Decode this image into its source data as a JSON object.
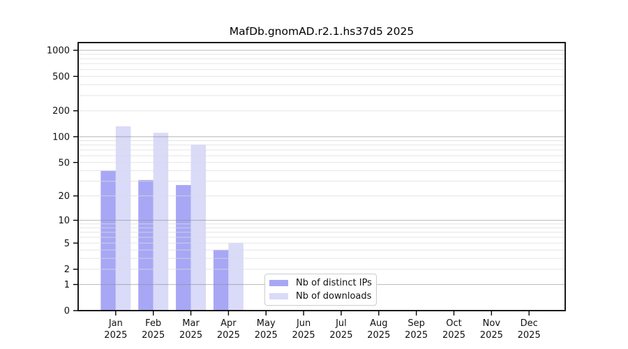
{
  "title": "MafDb.gnomAD.r2.1.hs37d5 2025",
  "chart_data": {
    "type": "bar",
    "title": "MafDb.gnomAD.r2.1.hs37d5 2025",
    "categories": [
      "Jan",
      "Feb",
      "Mar",
      "Apr",
      "May",
      "Jun",
      "Jul",
      "Aug",
      "Sep",
      "Oct",
      "Nov",
      "Dec"
    ],
    "year_label": "2025",
    "series": [
      {
        "name": "Nb of distinct IPs",
        "color": "#a7a7f5",
        "values": [
          40,
          31,
          27,
          4,
          0,
          0,
          0,
          0,
          0,
          0,
          0,
          0
        ]
      },
      {
        "name": "Nb of downloads",
        "color": "#dadaf9",
        "values": [
          132,
          111,
          81,
          5,
          0,
          0,
          0,
          0,
          0,
          0,
          0,
          0
        ]
      }
    ],
    "yscale": "log1p",
    "yticks": [
      0,
      1,
      2,
      5,
      10,
      20,
      50,
      100,
      200,
      500,
      1000
    ],
    "ylim": [
      0,
      1200
    ],
    "grid": "major and minor horizontal, drawn over bars",
    "legend_position": "bottom-center",
    "colors": {
      "grid_major": "#8c8c8c",
      "grid_minor": "#dcdcdc",
      "spine": "#000000",
      "tick_text": "#111111"
    }
  },
  "legend": {
    "items": [
      {
        "label": "Nb of distinct IPs"
      },
      {
        "label": "Nb of downloads"
      }
    ]
  }
}
